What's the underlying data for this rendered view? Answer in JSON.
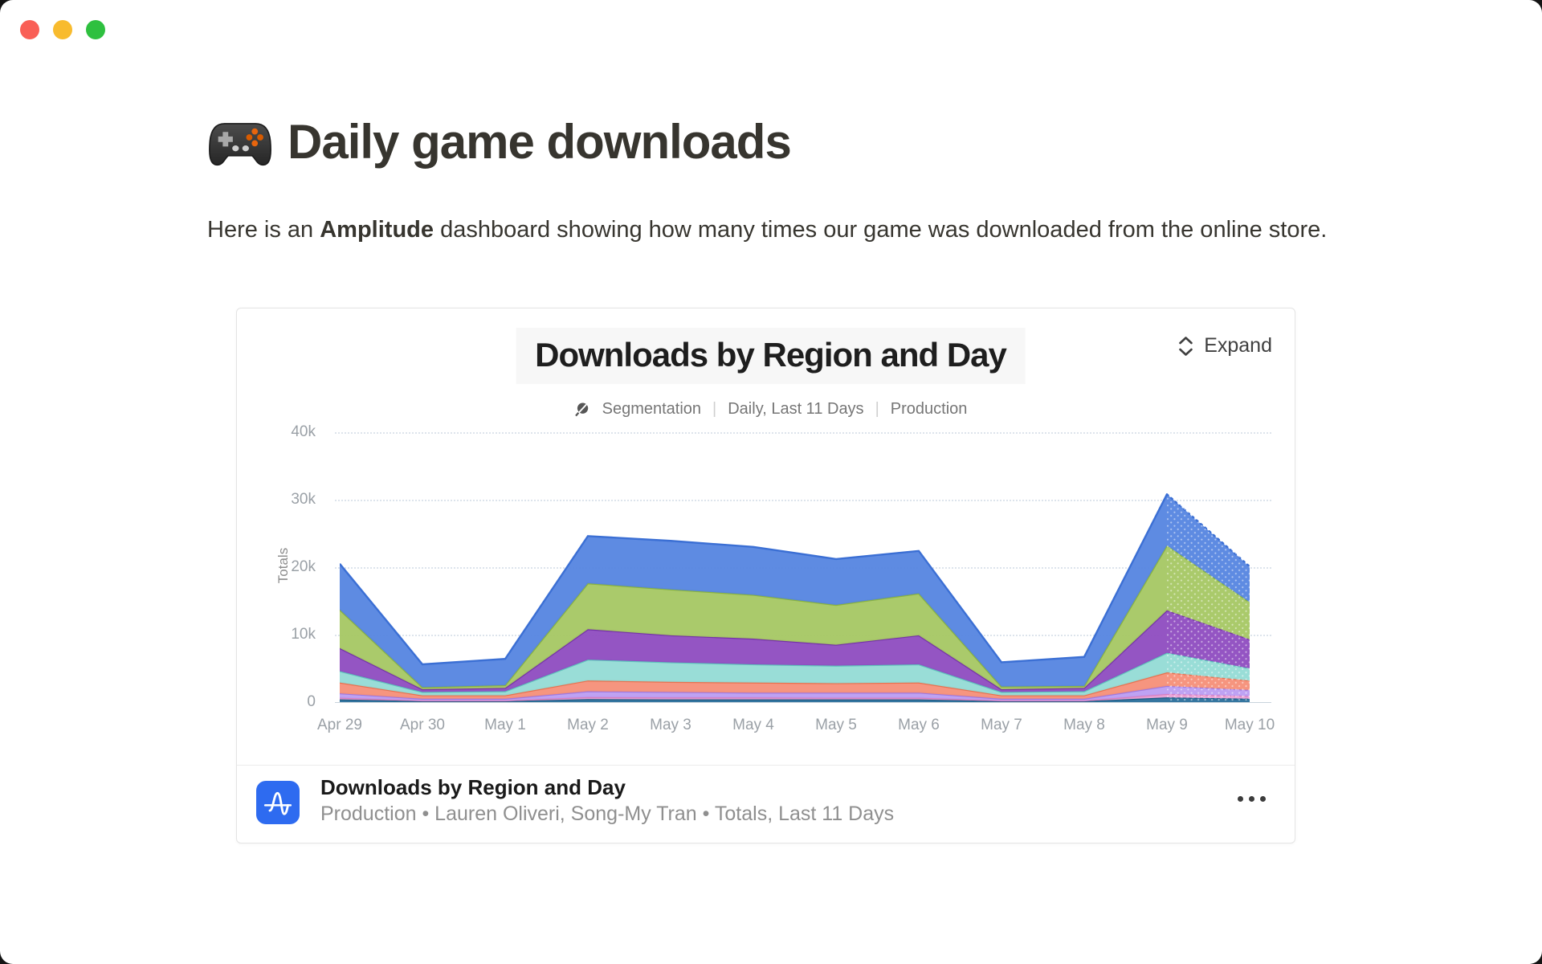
{
  "window": {
    "traffic_lights": [
      "close",
      "minimize",
      "zoom"
    ]
  },
  "page": {
    "title": "Daily game downloads",
    "title_icon": "game-controller-icon",
    "intro": {
      "p1": "Here is an ",
      "p2": "Amplitude",
      "p3": " dashboard showing how many times our game was downloaded from the online store."
    }
  },
  "embed": {
    "header": {
      "title": "Downloads by Region and Day",
      "meta_type_icon": "segmentation-icon",
      "meta_type": "Segmentation",
      "meta_separator": "|",
      "meta_range": "Daily, Last 11 Days",
      "meta_env": "Production",
      "expand_label": "Expand",
      "expand_icon": "chevron-up-down-icon"
    },
    "footer": {
      "source_icon": "amplitude-logo-icon",
      "source_icon_color": "#2e6bf0",
      "title": "Downloads by Region and Day",
      "subtitle": "Production • Lauren Oliveri, Song-My Tran • Totals, Last 11 Days",
      "more_icon": "ellipsis-icon"
    }
  },
  "chart_data": {
    "type": "area",
    "stacked": true,
    "title": "Downloads by Region and Day",
    "ylabel": "Totals",
    "xlabel": "",
    "x": [
      "Apr 29",
      "Apr 30",
      "May 1",
      "May 2",
      "May 3",
      "May 4",
      "May 5",
      "May 6",
      "May 7",
      "May 8",
      "May 9",
      "May 10"
    ],
    "yticks": [
      {
        "v": 0,
        "label": "0"
      },
      {
        "v": 10000,
        "label": "10k"
      },
      {
        "v": 20000,
        "label": "20k"
      },
      {
        "v": 30000,
        "label": "30k"
      },
      {
        "v": 40000,
        "label": "40k"
      }
    ],
    "ylim": [
      0,
      40000
    ],
    "grid": "horizontal-dotted",
    "legend": "none",
    "incomplete_from_index": 10,
    "series": [
      {
        "name": "series-1",
        "color": "#2a6f9b",
        "edge": "#1d5d85",
        "values": [
          400,
          150,
          150,
          450,
          400,
          400,
          400,
          400,
          150,
          150,
          700,
          500
        ]
      },
      {
        "name": "series-2",
        "color": "#eba0d6",
        "edge": "#d77fc0",
        "values": [
          250,
          100,
          100,
          300,
          300,
          300,
          250,
          250,
          100,
          100,
          500,
          400
        ]
      },
      {
        "name": "series-3",
        "color": "#bb9df2",
        "edge": "#9f7ae0",
        "values": [
          650,
          250,
          250,
          850,
          800,
          700,
          750,
          750,
          250,
          250,
          1200,
          900
        ]
      },
      {
        "name": "series-4",
        "color": "#f58f78",
        "edge": "#e8714f",
        "values": [
          1600,
          500,
          500,
          1600,
          1500,
          1500,
          1400,
          1500,
          500,
          500,
          2000,
          1400
        ]
      },
      {
        "name": "series-5",
        "color": "#93dbd5",
        "edge": "#5fc4bc",
        "values": [
          1700,
          500,
          600,
          3100,
          2900,
          2700,
          2600,
          2700,
          500,
          600,
          2900,
          1800
        ]
      },
      {
        "name": "series-6",
        "color": "#8e4cc0",
        "edge": "#7532a8",
        "values": [
          3400,
          400,
          500,
          4500,
          4000,
          3800,
          3100,
          4300,
          400,
          500,
          6300,
          4300
        ]
      },
      {
        "name": "series-7",
        "color": "#a5c763",
        "edge": "#8ab33f",
        "values": [
          5700,
          300,
          400,
          6800,
          6800,
          6500,
          5900,
          6200,
          400,
          300,
          9600,
          5500
        ]
      },
      {
        "name": "series-8",
        "color": "#5585e0",
        "edge": "#3b6fd4",
        "values": [
          6800,
          3400,
          3900,
          7000,
          7200,
          7100,
          6800,
          6300,
          3600,
          4300,
          7600,
          5300
        ]
      }
    ],
    "totals": [
      20500,
      5600,
      6400,
      24600,
      23900,
      23000,
      21200,
      22400,
      5900,
      6700,
      30800,
      20100
    ]
  }
}
